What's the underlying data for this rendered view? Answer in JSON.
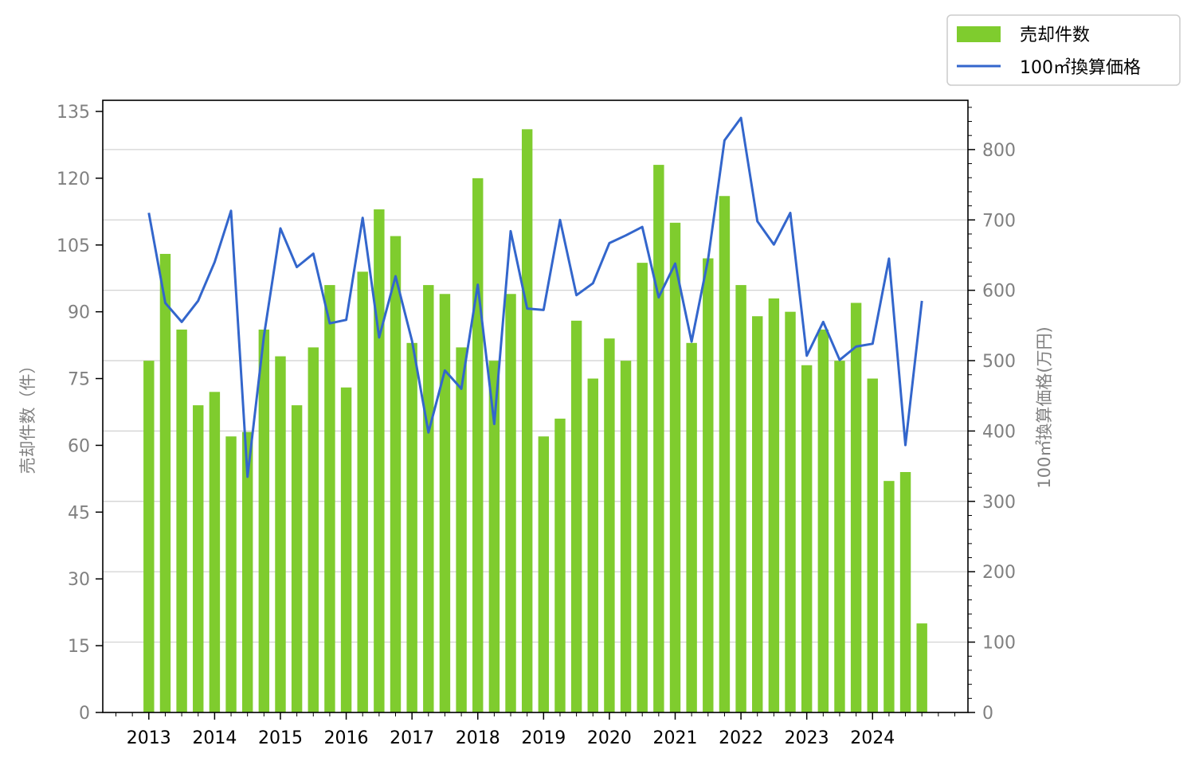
{
  "chart_data": {
    "type": "bar+line",
    "title": "",
    "xlabel": "",
    "ylabel_left": "売却件数（件）",
    "ylabel_right": "100㎡換算価格(万円)",
    "colors": {
      "bar": "#7fcc2e",
      "line": "#3366cc",
      "grid": "#d3d3d3",
      "tick_text": "#808080"
    },
    "x_ticks": [
      "2013",
      "2014",
      "2015",
      "2016",
      "2017",
      "2018",
      "2019",
      "2020",
      "2021",
      "2022",
      "2023",
      "2024"
    ],
    "xlim": [
      2012.3,
      2025.45
    ],
    "ylim_left": [
      0,
      137.5
    ],
    "ylim_right": [
      0,
      870
    ],
    "yticks_left": [
      0,
      15,
      30,
      45,
      60,
      75,
      90,
      105,
      120,
      135
    ],
    "yticks_right": [
      0,
      100,
      200,
      300,
      400,
      500,
      600,
      700,
      800
    ],
    "grid": "horizontal, right axis",
    "legend": {
      "position": "top-right, outside plot",
      "entries": [
        "売却件数",
        "100㎡換算価格"
      ]
    },
    "x": [
      2013.0,
      2013.25,
      2013.5,
      2013.75,
      2014.0,
      2014.25,
      2014.5,
      2014.75,
      2015.0,
      2015.25,
      2015.5,
      2015.75,
      2016.0,
      2016.25,
      2016.5,
      2016.75,
      2017.0,
      2017.25,
      2017.5,
      2017.75,
      2018.0,
      2018.25,
      2018.5,
      2018.75,
      2019.0,
      2019.25,
      2019.5,
      2019.75,
      2020.0,
      2020.25,
      2020.5,
      2020.75,
      2021.0,
      2021.25,
      2021.5,
      2021.75,
      2022.0,
      2022.25,
      2022.5,
      2022.75,
      2023.0,
      2023.25,
      2023.5,
      2023.75,
      2024.0,
      2024.25,
      2024.5,
      2024.75
    ],
    "series": [
      {
        "name": "売却件数",
        "type": "bar",
        "values": [
          79,
          103,
          86,
          69,
          72,
          62,
          63,
          86,
          80,
          69,
          82,
          96,
          73,
          99,
          113,
          107,
          83,
          96,
          94,
          82,
          120,
          79,
          94,
          131,
          62,
          66,
          88,
          75,
          84,
          79,
          101,
          123,
          110,
          83,
          102,
          116,
          96,
          89,
          93,
          90,
          78,
          86,
          79,
          92,
          75,
          52,
          54,
          20
        ]
      },
      {
        "name": "100㎡換算価格",
        "type": "line",
        "values": [
          710,
          582,
          555,
          585,
          640,
          713,
          335,
          535,
          688,
          633,
          652,
          553,
          558,
          703,
          533,
          620,
          528,
          398,
          486,
          460,
          608,
          410,
          684,
          574,
          572,
          700,
          593,
          610,
          667,
          678,
          690,
          590,
          638,
          527,
          644,
          813,
          845,
          698,
          665,
          710,
          507,
          555,
          501,
          520,
          524,
          645,
          380,
          585
        ]
      }
    ]
  }
}
